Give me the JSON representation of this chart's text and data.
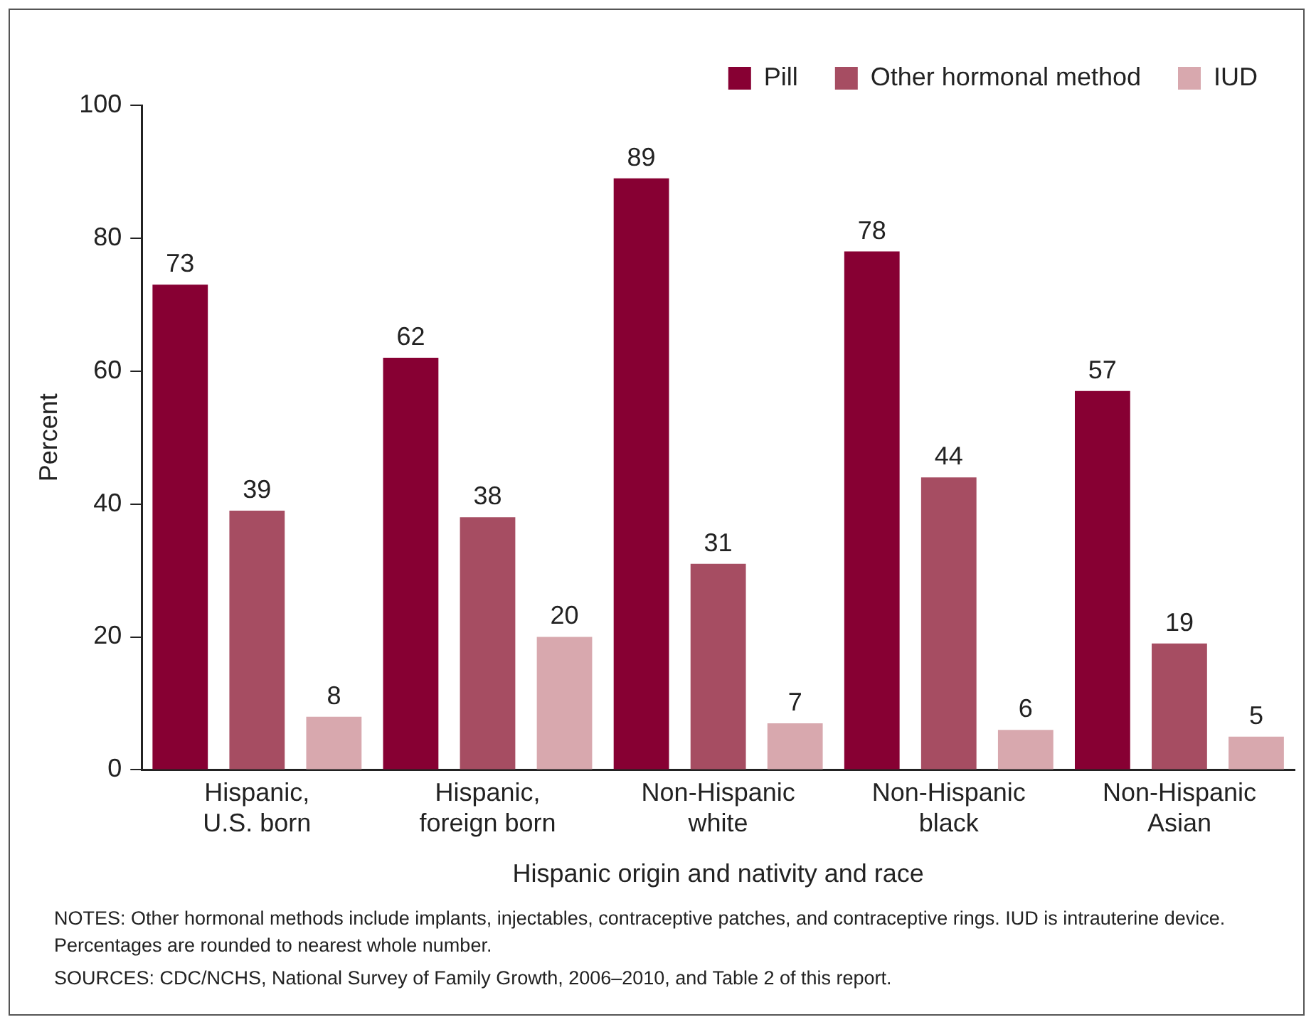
{
  "chart_data": {
    "type": "bar",
    "xlabel": "Hispanic origin and nativity and race",
    "ylabel": "Percent",
    "categories": [
      "Hispanic, U.S. born",
      "Hispanic, foreign born",
      "Non-Hispanic white",
      "Non-Hispanic black",
      "Non-Hispanic Asian"
    ],
    "series": [
      {
        "name": "Pill",
        "color": "#870033",
        "values": [
          73,
          62,
          89,
          78,
          57
        ]
      },
      {
        "name": "Other hormonal method",
        "color": "#a64d62",
        "values": [
          39,
          38,
          31,
          44,
          19
        ]
      },
      {
        "name": "IUD",
        "color": "#d8a8ae",
        "values": [
          8,
          20,
          7,
          6,
          5
        ]
      }
    ],
    "ylim": [
      0,
      100
    ],
    "yticks": [
      0,
      20,
      40,
      60,
      80,
      100
    ],
    "grid": false,
    "legend": "top right",
    "data_labels": true,
    "annotations": [
      "NOTES: Other hormonal methods include implants, injectables, contraceptive patches, and contraceptive rings. IUD is intrauterine device. Percentages are rounded to nearest whole number.",
      "SOURCES: CDC/NCHS, National Survey of Family Growth, 2006–2010, and Table 2 of this report."
    ]
  }
}
